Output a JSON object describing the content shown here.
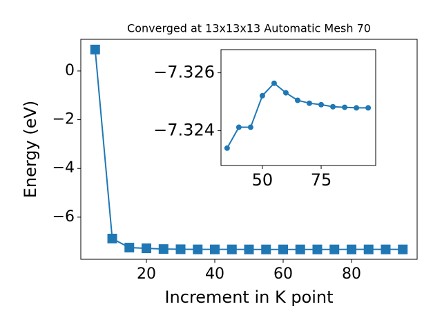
{
  "chart_data": [
    {
      "type": "line",
      "title": "Converged at 13x13x13 Automatic Mesh 70",
      "x_label": "Increment in K point",
      "y_label": "Energy (eV)",
      "x": [
        5,
        10,
        15,
        20,
        25,
        30,
        35,
        40,
        45,
        50,
        55,
        60,
        65,
        70,
        75,
        80,
        85,
        90,
        95
      ],
      "series": [
        {
          "name": "main",
          "color": "#1f77b4",
          "marker": "square",
          "values": [
            0.88,
            -6.88,
            -7.25,
            -7.28,
            -7.31,
            -7.318,
            -7.3234,
            -7.3241,
            -7.3241,
            -7.3252,
            -7.3256,
            -7.3253,
            -7.3251,
            -7.325,
            -7.3249,
            -7.3248,
            -7.3248,
            -7.3248,
            -7.3248
          ]
        }
      ],
      "xlim": [
        0.8,
        99.2
      ],
      "ylim": [
        -7.73,
        1.3
      ],
      "xticks": [
        20,
        40,
        60,
        80
      ],
      "yticks": [
        0,
        {
          "value": -2,
          "label": "−2"
        },
        {
          "value": -4,
          "label": "−4"
        },
        {
          "value": -6,
          "label": "−6"
        }
      ]
    },
    {
      "type": "line",
      "x": [
        35,
        40,
        45,
        50,
        55,
        60,
        65,
        70,
        75,
        80,
        85,
        90,
        95
      ],
      "series": [
        {
          "name": "inset",
          "color": "#1f77b4",
          "marker": "circle",
          "values": [
            -7.3234,
            -7.32412,
            -7.32412,
            -7.32521,
            -7.32564,
            -7.32531,
            -7.32505,
            -7.32495,
            -7.3249,
            -7.32483,
            -7.32481,
            -7.32479,
            -7.32479
          ]
        }
      ],
      "xlim": [
        32.4,
        98.2
      ],
      "ylim": [
        -7.3228,
        -7.3268
      ],
      "xticks": [
        50,
        75
      ],
      "yticks": [
        {
          "value": -7.326,
          "label": "−7.326"
        },
        {
          "value": -7.324,
          "label": "−7.324"
        }
      ]
    }
  ]
}
